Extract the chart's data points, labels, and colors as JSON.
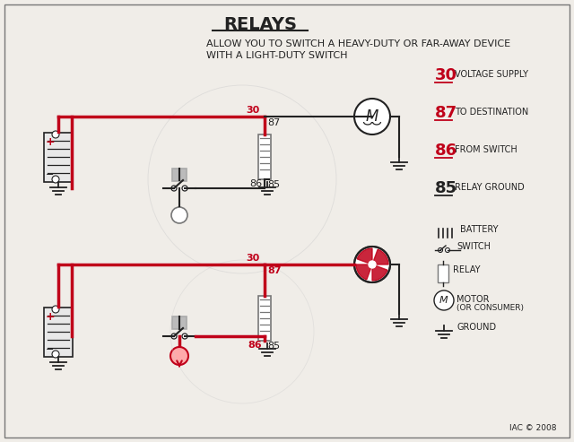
{
  "title": "RELAYS",
  "subtitle1": "ALLOW YOU TO SWITCH A HEAVY-DUTY OR FAR-AWAY DEVICE",
  "subtitle2": "WITH A LIGHT-DUTY SWITCH",
  "bg_color": "#f0ede8",
  "red": "#c0001a",
  "black": "#222222",
  "gray": "#777777",
  "lgray": "#aaaaaa",
  "footer": "IAC © 2008",
  "border_color": "#999999",
  "lw_main": 2.5,
  "lw_thin": 1.5,
  "lw_border": 1.0
}
